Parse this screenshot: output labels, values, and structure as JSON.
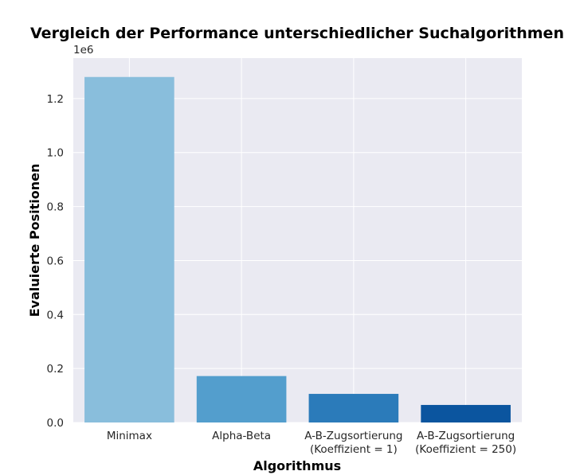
{
  "chart_data": {
    "type": "bar",
    "title": "Vergleich der Performance unterschiedlicher Suchalgorithmen",
    "xlabel": "Algorithmus",
    "ylabel": "Evaluierte Positionen",
    "y_offset_label": "1e6",
    "ylim": [
      0,
      1.35
    ],
    "y_ticks": [
      0.0,
      0.2,
      0.4,
      0.6,
      0.8,
      1.0,
      1.2
    ],
    "y_tick_labels": [
      "0.0",
      "0.2",
      "0.4",
      "0.6",
      "0.8",
      "1.0",
      "1.2"
    ],
    "categories": [
      [
        "Minimax"
      ],
      [
        "Alpha-Beta"
      ],
      [
        "A-B-Zugsortierung",
        "(Koeffizient = 1)"
      ],
      [
        "A-B-Zugsortierung",
        "(Koeffizient = 250)"
      ]
    ],
    "values": [
      1.28,
      0.172,
      0.106,
      0.065
    ],
    "colors": [
      "#89bedc",
      "#539ecd",
      "#2b7bba",
      "#0b559f"
    ],
    "grid": true,
    "background": "#eaeaf2"
  }
}
